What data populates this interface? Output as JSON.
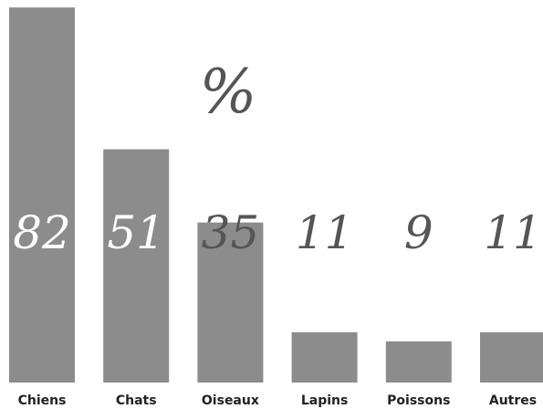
{
  "chart_data": {
    "type": "bar",
    "categories": [
      "Chiens",
      "Chats",
      "Oiseaux",
      "Lapins",
      "Poissons",
      "Autres"
    ],
    "values": [
      82,
      51,
      35,
      11,
      9,
      11
    ],
    "value_labels": [
      "82",
      "51",
      "35",
      "11",
      "9",
      "11"
    ],
    "unit": "%",
    "title": "",
    "xlabel": "",
    "ylabel": "",
    "grid": false,
    "colors": {
      "bar": "#8c8c8c",
      "label_inside": "#ffffff",
      "label_outside": "#555555"
    }
  }
}
